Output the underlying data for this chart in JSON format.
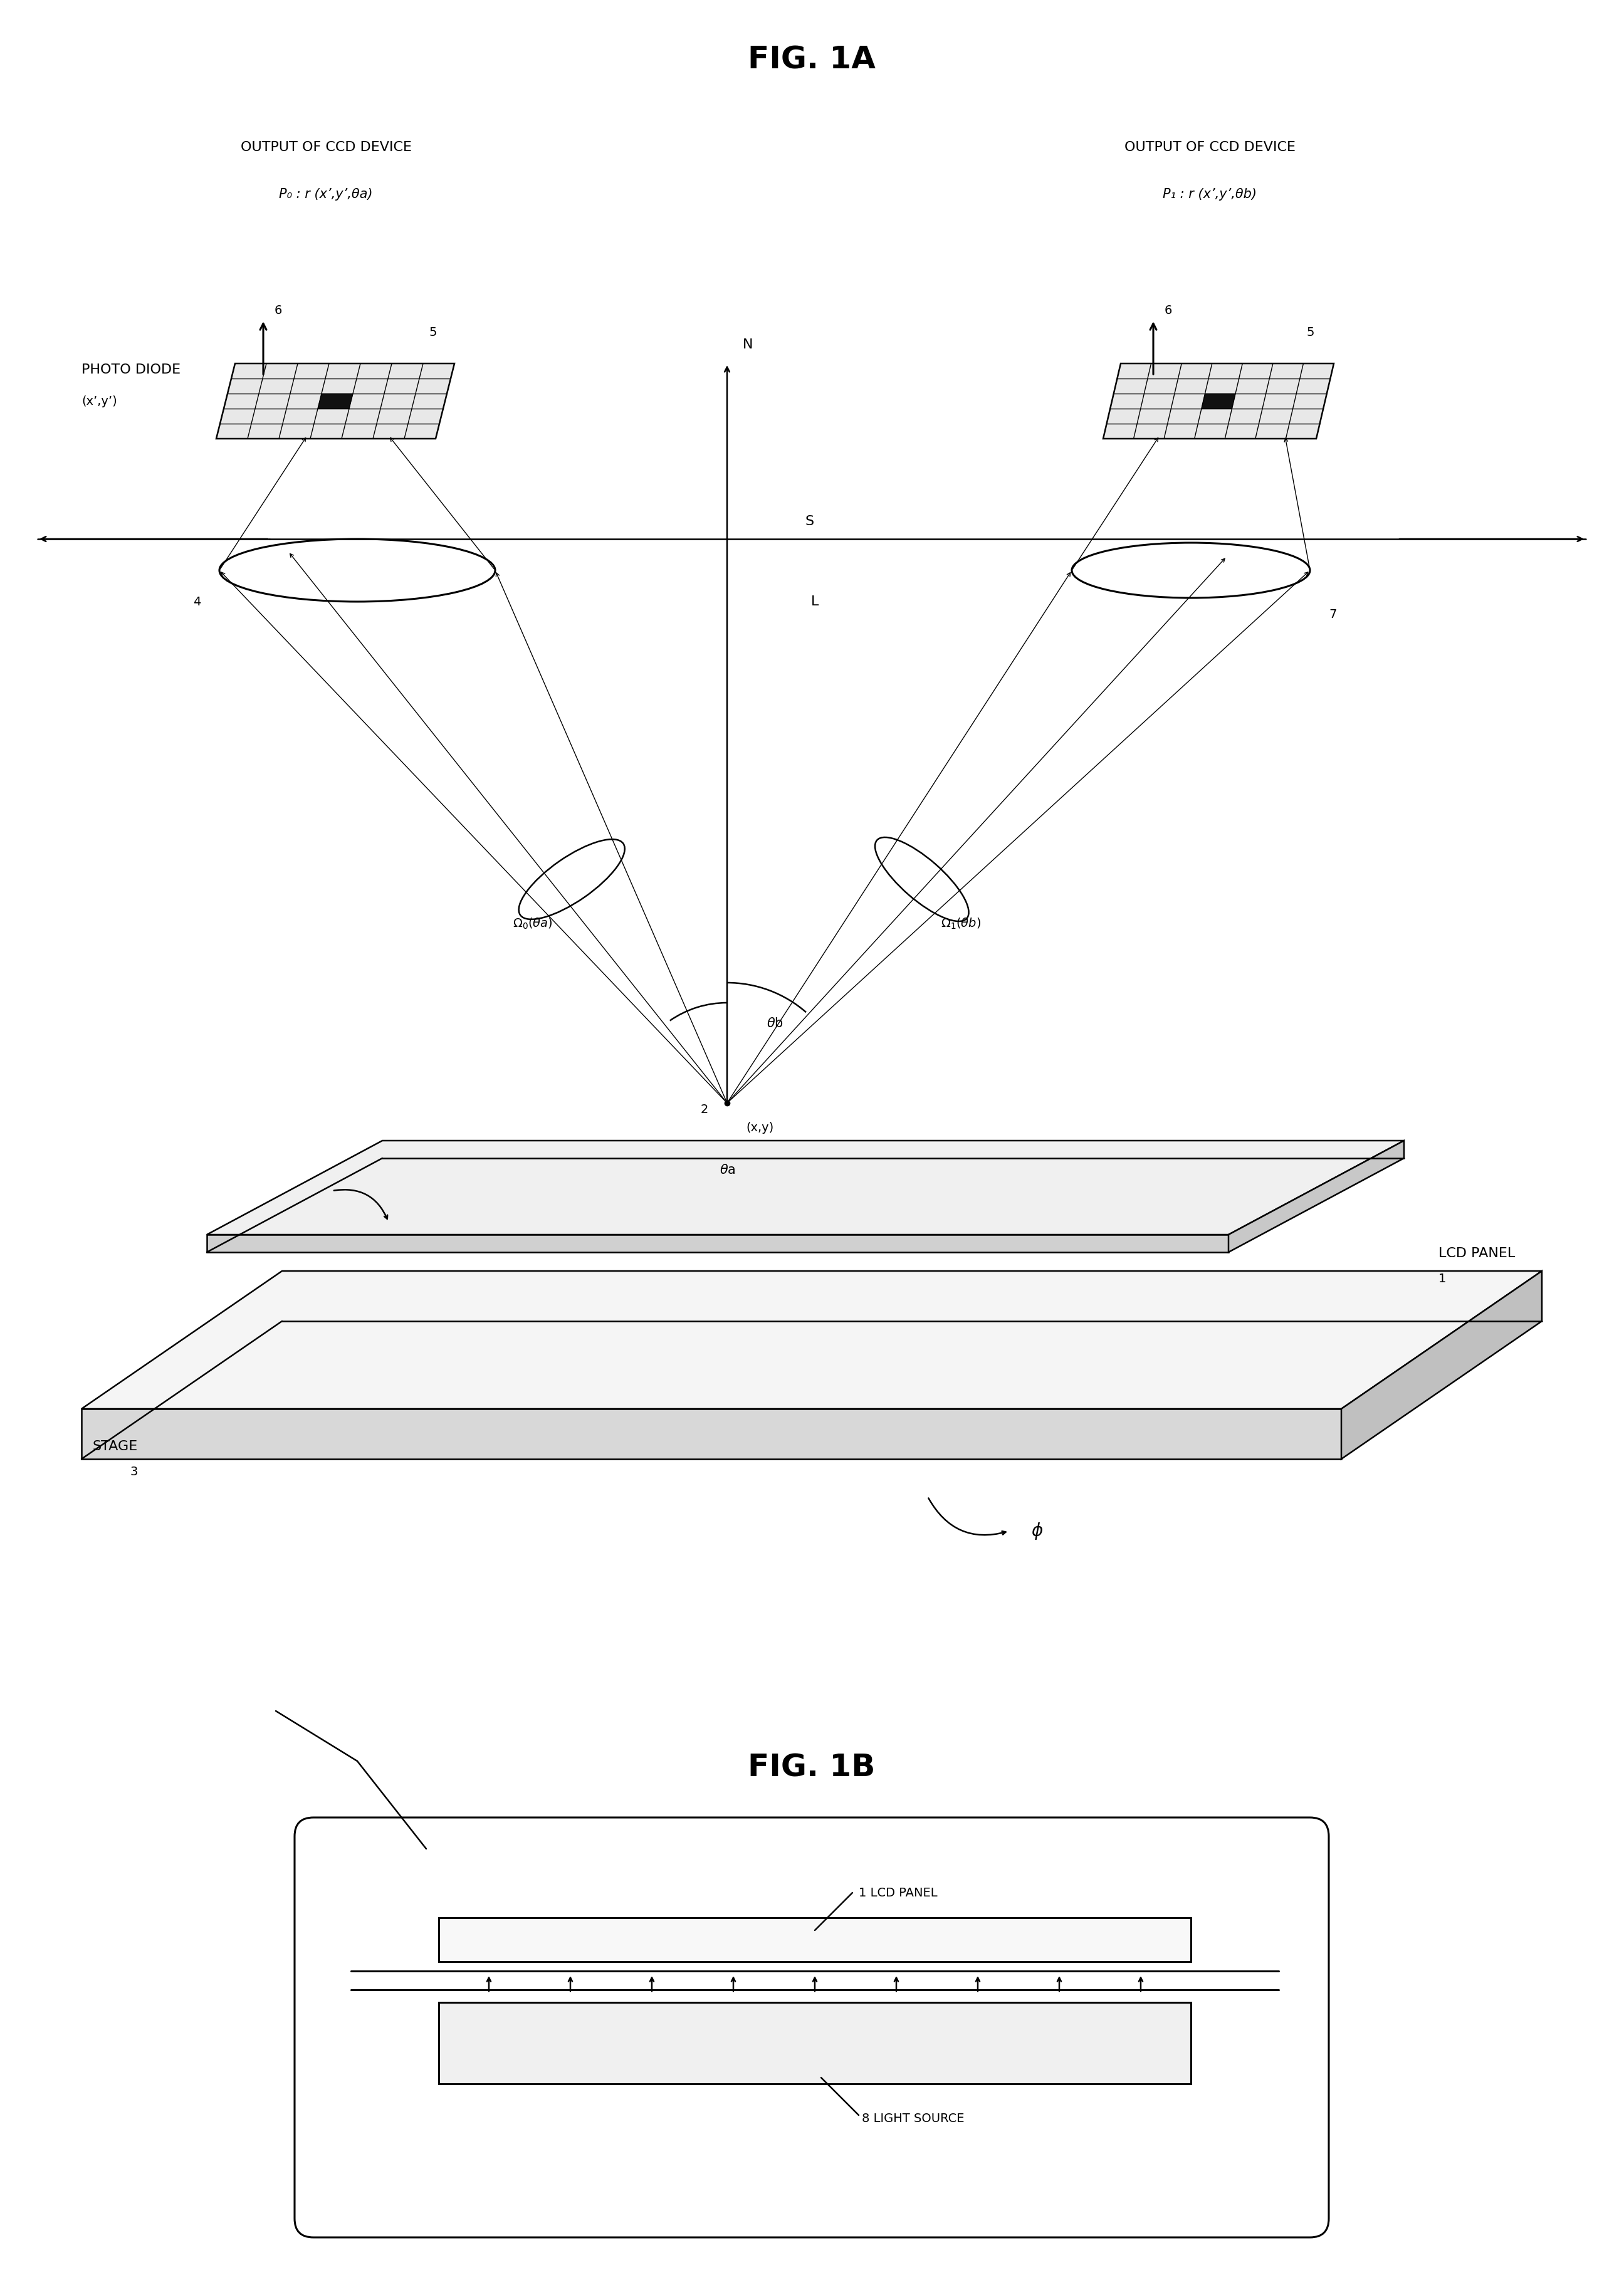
{
  "fig1a_title": "FIG. 1A",
  "fig1b_title": "FIG. 1B",
  "bg": "#ffffff",
  "lc": "#000000",
  "lw": 1.8,
  "lw_thin": 1.0,
  "lw_thick": 2.2,
  "title_fs": 36,
  "label_fs": 16,
  "small_fs": 14,
  "ccd_left_label": "OUTPUT OF CCD DEVICE",
  "ccd_left_formula": "P₀ : r (x’,y’,θa)",
  "ccd_right_label": "OUTPUT OF CCD DEVICE",
  "ccd_right_formula": "P₁ : r (x’,y’,θb)",
  "photo_diode_label": "PHOTO DIODE",
  "photo_diode_coord": "(x’,y’)",
  "stage_label": "STAGE",
  "lcd_label": "LCD PANEL",
  "fig1b_lcd_label": "1 LCD PANEL",
  "fig1b_light_label": "8 LIGHT SOURCE"
}
